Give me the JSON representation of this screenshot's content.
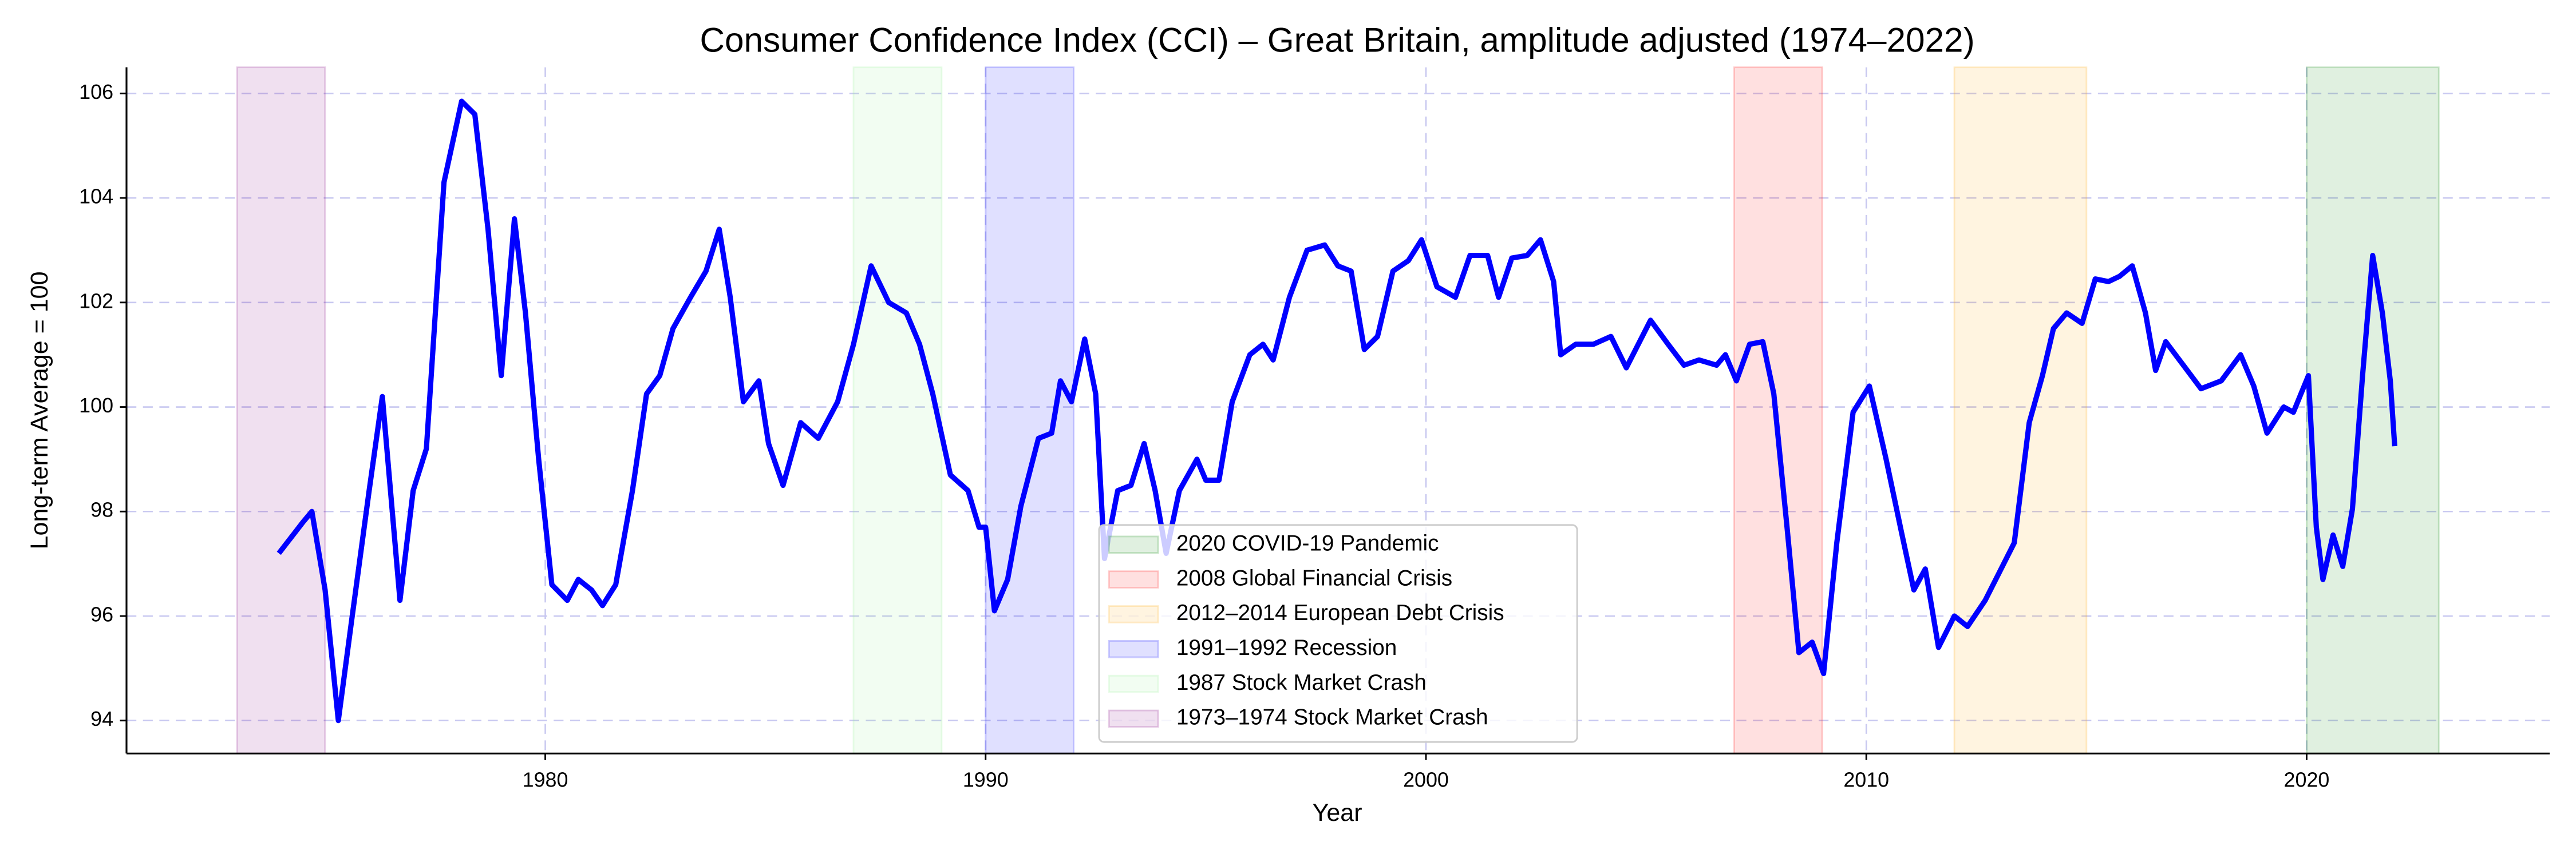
{
  "chart_data": {
    "type": "line",
    "title": "Consumer Confidence Index (CCI) – Great Britain, amplitude adjusted (1974–2022)",
    "xlabel": "Year",
    "ylabel": "Long-term Average = 100",
    "xlim": [
      1970.49,
      2025.52
    ],
    "ylim": [
      93.37,
      106.5
    ],
    "xticks": [
      1980,
      1990,
      2000,
      2010,
      2020
    ],
    "yticks": [
      94,
      96,
      98,
      100,
      102,
      104,
      106
    ],
    "grid": true,
    "legend_position": "lower center",
    "spans": [
      {
        "label": "2020 COVID-19 Pandemic",
        "start": 2020,
        "end": 2023,
        "color": "green"
      },
      {
        "label": "2008 Global Financial Crisis",
        "start": 2007,
        "end": 2009,
        "color": "red"
      },
      {
        "label": "2012–2014 European Debt Crisis",
        "start": 2012,
        "end": 2015,
        "color": "orange"
      },
      {
        "label": "1991–1992 Recession",
        "start": 1990,
        "end": 1992,
        "color": "blue"
      },
      {
        "label": "1987 Stock Market Crash",
        "start": 1987,
        "end": 1989,
        "color": "lightgreen"
      },
      {
        "label": "1973–1974 Stock Market Crash",
        "start": 1973,
        "end": 1975,
        "color": "purple"
      }
    ],
    "x": [
      1973.95,
      1974.5,
      1974.7,
      1975.0,
      1975.3,
      1975.6,
      1976.0,
      1976.3,
      1976.7,
      1977.0,
      1977.3,
      1977.7,
      1978.1,
      1978.4,
      1978.7,
      1979.0,
      1979.3,
      1979.55,
      1979.85,
      1980.15,
      1980.5,
      1980.75,
      1981.05,
      1981.3,
      1981.6,
      1981.98,
      1982.3,
      1982.6,
      1982.9,
      1983.3,
      1983.65,
      1983.95,
      1984.2,
      1984.5,
      1984.85,
      1985.07,
      1985.4,
      1985.8,
      1986.2,
      1986.64,
      1987.0,
      1987.4,
      1987.8,
      1988.2,
      1988.5,
      1988.8,
      1989.2,
      1989.6,
      1989.85,
      1990.0,
      1990.2,
      1990.5,
      1990.8,
      1991.2,
      1991.5,
      1991.7,
      1991.95,
      1992.25,
      1992.5,
      1992.7,
      1993.0,
      1993.3,
      1993.6,
      1993.85,
      1994.1,
      1994.4,
      1994.8,
      1995.0,
      1995.3,
      1995.6,
      1996.0,
      1996.3,
      1996.53,
      1996.9,
      1997.3,
      1997.7,
      1998.0,
      1998.3,
      1998.6,
      1998.9,
      1999.25,
      1999.6,
      1999.9,
      2000.25,
      2000.67,
      2001.0,
      2001.4,
      2001.65,
      2001.95,
      2002.3,
      2002.6,
      2002.9,
      2003.06,
      2003.4,
      2003.8,
      2004.2,
      2004.55,
      2005.1,
      2005.5,
      2005.86,
      2006.2,
      2006.6,
      2006.8,
      2007.05,
      2007.35,
      2007.65,
      2007.9,
      2008.2,
      2008.47,
      2008.77,
      2009.03,
      2009.33,
      2009.7,
      2010.07,
      2010.45,
      2010.8,
      2011.08,
      2011.34,
      2011.64,
      2012.0,
      2012.3,
      2012.7,
      2013.0,
      2013.36,
      2013.7,
      2014.0,
      2014.25,
      2014.55,
      2014.9,
      2015.2,
      2015.5,
      2015.75,
      2016.04,
      2016.34,
      2016.57,
      2016.8,
      2017.2,
      2017.6,
      2018.06,
      2018.5,
      2018.8,
      2019.1,
      2019.48,
      2019.7,
      2020.04,
      2020.22,
      2020.37,
      2020.6,
      2020.82,
      2021.04,
      2021.27,
      2021.5,
      2021.72,
      2021.9,
      2022.0
    ],
    "series": [
      {
        "color": "blue",
        "values": [
          97.2,
          97.8,
          98.0,
          96.5,
          94.0,
          95.9,
          98.4,
          100.2,
          96.3,
          98.4,
          99.2,
          104.3,
          105.85,
          105.6,
          103.4,
          100.6,
          103.6,
          101.8,
          99.0,
          96.6,
          96.3,
          96.7,
          96.5,
          96.2,
          96.6,
          98.4,
          100.25,
          100.6,
          101.5,
          102.1,
          102.6,
          103.4,
          102.1,
          100.1,
          100.5,
          99.3,
          98.5,
          99.7,
          99.4,
          100.1,
          101.2,
          102.7,
          102.0,
          101.8,
          101.2,
          100.25,
          98.7,
          98.4,
          97.7,
          97.7,
          96.1,
          96.7,
          98.1,
          99.4,
          99.5,
          100.5,
          100.1,
          101.3,
          100.25,
          97.1,
          98.4,
          98.5,
          99.3,
          98.4,
          97.2,
          98.4,
          99.0,
          98.6,
          98.6,
          100.1,
          101.0,
          101.2,
          100.9,
          102.1,
          103.0,
          103.1,
          102.7,
          102.6,
          101.1,
          101.35,
          102.6,
          102.8,
          103.2,
          102.3,
          102.1,
          102.9,
          102.9,
          102.1,
          102.85,
          102.9,
          103.2,
          102.4,
          101.0,
          101.2,
          101.2,
          101.35,
          100.75,
          101.66,
          101.2,
          100.8,
          100.9,
          100.8,
          101.0,
          100.5,
          101.2,
          101.25,
          100.25,
          97.7,
          95.3,
          95.5,
          94.9,
          97.4,
          99.9,
          100.4,
          99.0,
          97.6,
          96.5,
          96.9,
          95.4,
          96.0,
          95.8,
          96.3,
          96.8,
          97.4,
          99.7,
          100.6,
          101.5,
          101.8,
          101.6,
          102.45,
          102.4,
          102.5,
          102.7,
          101.8,
          100.7,
          101.25,
          100.8,
          100.35,
          100.5,
          101.0,
          100.4,
          99.5,
          100.0,
          99.9,
          100.6,
          97.7,
          96.7,
          97.55,
          96.95,
          98.05,
          100.6,
          102.9,
          101.8,
          100.5,
          99.25
        ]
      }
    ]
  }
}
